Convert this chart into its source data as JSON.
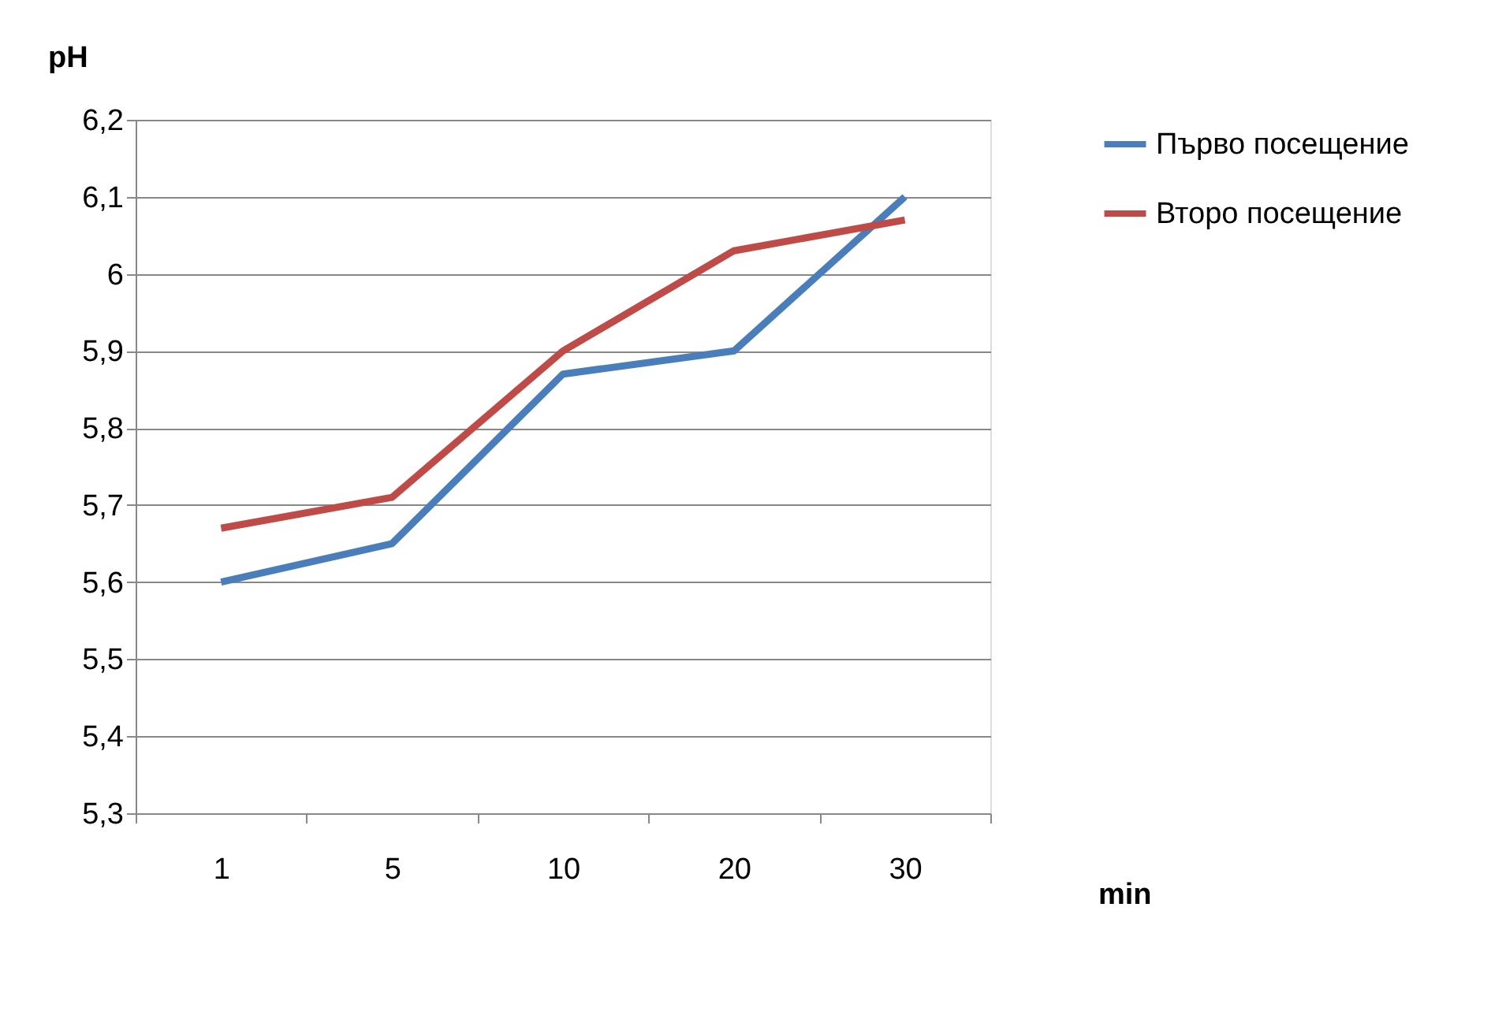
{
  "chart_data": {
    "type": "line",
    "ylabel": "pH",
    "xlabel": "min",
    "categories": [
      "1",
      "5",
      "10",
      "20",
      "30"
    ],
    "series": [
      {
        "name": "Първо посещение",
        "color": "#4a7ebb",
        "values": [
          5.6,
          5.65,
          5.87,
          5.9,
          6.1
        ]
      },
      {
        "name": "Второ посещение",
        "color": "#be4b48",
        "values": [
          5.67,
          5.71,
          5.9,
          6.03,
          6.07
        ]
      }
    ],
    "ylim": [
      5.3,
      6.2
    ],
    "yticks": [
      {
        "value": 5.3,
        "label": "5,3"
      },
      {
        "value": 5.4,
        "label": "5,4"
      },
      {
        "value": 5.5,
        "label": "5,5"
      },
      {
        "value": 5.6,
        "label": "5,6"
      },
      {
        "value": 5.7,
        "label": "5,7"
      },
      {
        "value": 5.8,
        "label": "5,8"
      },
      {
        "value": 5.9,
        "label": "5,9"
      },
      {
        "value": 6,
        "label": "6"
      },
      {
        "value": 6.1,
        "label": "6,1"
      },
      {
        "value": 6.2,
        "label": "6,2"
      }
    ],
    "grid": "y",
    "legend": "right",
    "marker": "none",
    "line_style": "solid"
  }
}
